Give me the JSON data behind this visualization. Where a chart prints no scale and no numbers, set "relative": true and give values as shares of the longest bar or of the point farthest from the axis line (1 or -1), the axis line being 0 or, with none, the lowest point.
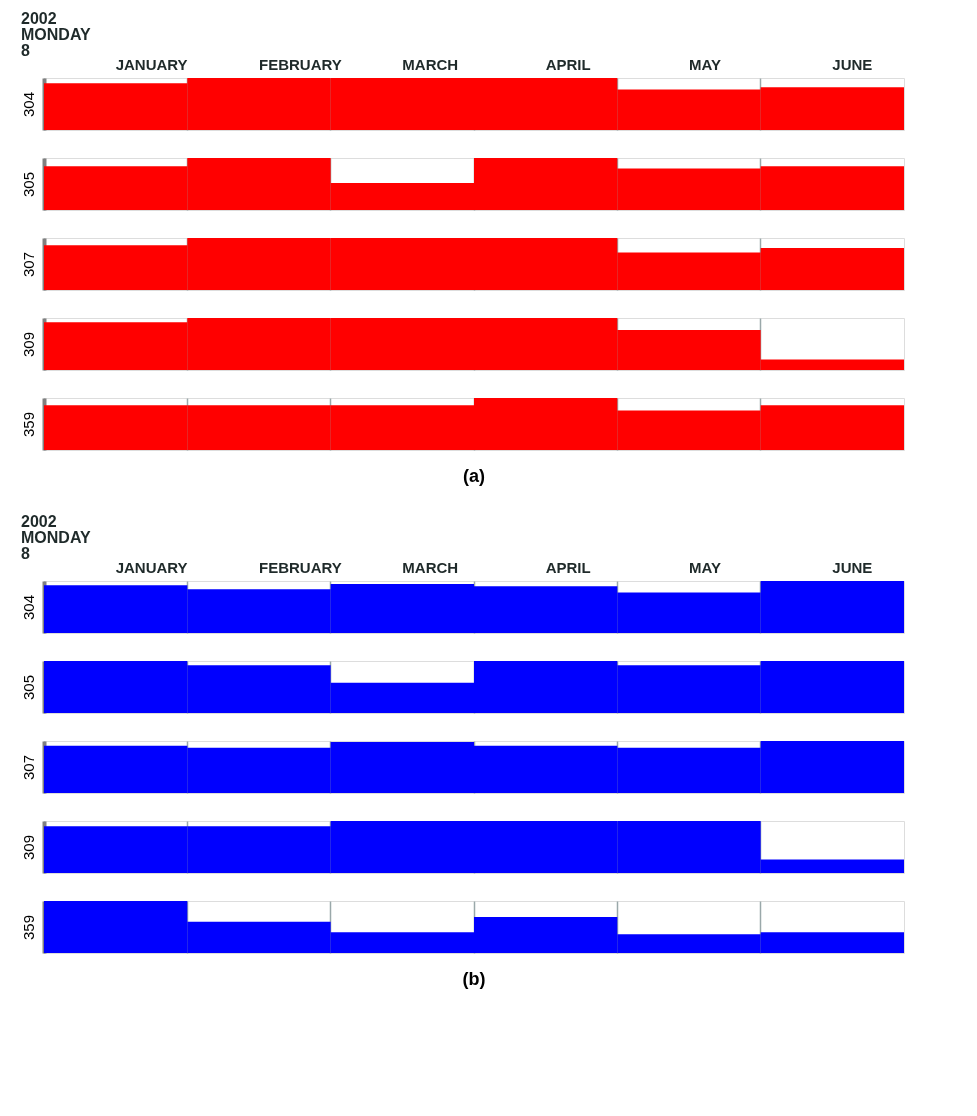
{
  "chart_data": [
    {
      "type": "bar",
      "relative": true,
      "title": "2002\nMONDAY\n8",
      "ylabel": "304",
      "categories": [
        "JANUARY",
        "FEBRUARY",
        "MARCH",
        "APRIL",
        "MAY",
        "JUNE"
      ],
      "tick_labels": "x",
      "grid": "x",
      "color": "#ff0000",
      "values": [
        0.9,
        1,
        1,
        1,
        0.78,
        0.82
      ]
    },
    {
      "type": "bar",
      "relative": true,
      "ylabel": "305",
      "categories": [
        null,
        null,
        null,
        null,
        null,
        null
      ],
      "tick_labels": false,
      "grid": "x",
      "color": "#ff0000",
      "values": [
        0.84,
        1,
        0.52,
        1,
        0.8,
        0.84
      ]
    },
    {
      "type": "bar",
      "relative": true,
      "ylabel": "307",
      "categories": [
        null,
        null,
        null,
        null,
        null,
        null
      ],
      "tick_labels": false,
      "grid": "x",
      "color": "#ff0000",
      "values": [
        0.86,
        1,
        1,
        1,
        0.72,
        0.81
      ]
    },
    {
      "type": "bar",
      "relative": true,
      "ylabel": "309",
      "categories": [
        null,
        null,
        null,
        null,
        null,
        null
      ],
      "tick_labels": false,
      "grid": "x",
      "color": "#ff0000",
      "values": [
        0.92,
        1,
        1,
        1,
        0.77,
        0.2
      ]
    },
    {
      "type": "bar",
      "relative": true,
      "ylabel": "359",
      "categories": [
        null,
        null,
        null,
        null,
        null,
        null
      ],
      "tick_labels": false,
      "grid": "x",
      "color": "#ff0000",
      "values": [
        0.86,
        0.86,
        0.86,
        1,
        0.76,
        0.86
      ],
      "annotations": [
        "(a)"
      ]
    },
    {
      "type": "bar",
      "relative": true,
      "title": "2002\nMONDAY\n8",
      "ylabel": "304",
      "categories": [
        "JANUARY",
        "FEBRUARY",
        "MARCH",
        "APRIL",
        "MAY",
        "JUNE"
      ],
      "tick_labels": "x",
      "grid": "x",
      "color": "#0000ff",
      "values": [
        0.92,
        0.84,
        0.94,
        0.9,
        0.78,
        1
      ]
    },
    {
      "type": "bar",
      "relative": true,
      "ylabel": "305",
      "categories": [
        null,
        null,
        null,
        null,
        null,
        null
      ],
      "tick_labels": false,
      "grid": "x",
      "color": "#0000ff",
      "values": [
        1,
        0.92,
        0.58,
        1,
        0.92,
        1
      ]
    },
    {
      "type": "bar",
      "relative": true,
      "ylabel": "307",
      "categories": [
        null,
        null,
        null,
        null,
        null,
        null
      ],
      "tick_labels": false,
      "grid": "x",
      "color": "#0000ff",
      "values": [
        0.91,
        0.87,
        0.98,
        0.91,
        0.87,
        1
      ]
    },
    {
      "type": "bar",
      "relative": true,
      "ylabel": "309",
      "categories": [
        null,
        null,
        null,
        null,
        null,
        null
      ],
      "tick_labels": false,
      "grid": "x",
      "color": "#0000ff",
      "values": [
        0.9,
        0.9,
        1,
        1,
        1,
        0.26
      ]
    },
    {
      "type": "bar",
      "relative": true,
      "ylabel": "359",
      "categories": [
        null,
        null,
        null,
        null,
        null,
        null
      ],
      "tick_labels": false,
      "grid": "x",
      "color": "#0000ff",
      "values": [
        1,
        0.6,
        0.4,
        0.69,
        0.36,
        0.4
      ],
      "annotations": [
        "(b)"
      ]
    }
  ]
}
